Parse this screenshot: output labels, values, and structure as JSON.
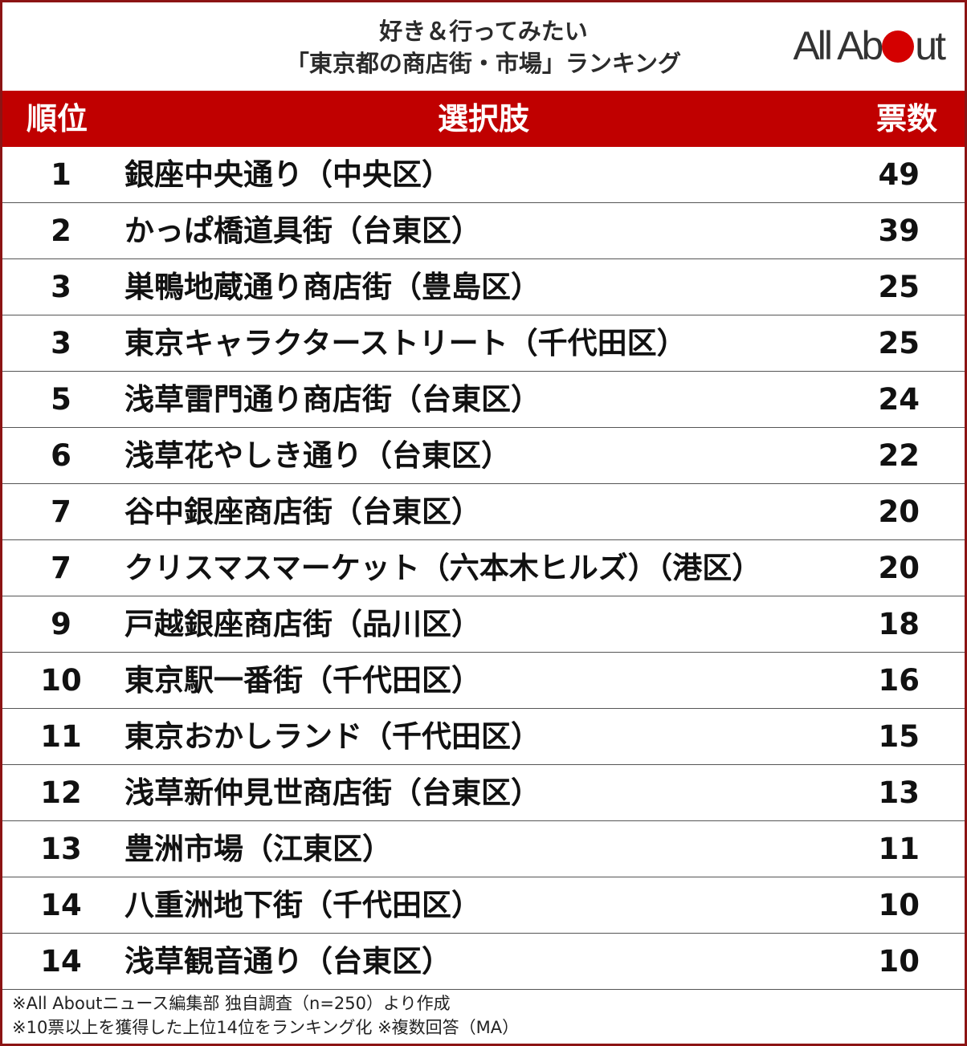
{
  "header": {
    "title_line1": "好き＆行ってみたい",
    "title_line2": "「東京都の商店街・市場」ランキング",
    "logo_part1": "All Ab",
    "logo_part2": "ut"
  },
  "table": {
    "columns": [
      "順位",
      "選択肢",
      "票数"
    ],
    "rows": [
      {
        "rank": "1",
        "choice": "銀座中央通り（中央区）",
        "votes": "49"
      },
      {
        "rank": "2",
        "choice": "かっぱ橋道具街（台東区）",
        "votes": "39"
      },
      {
        "rank": "3",
        "choice": "巣鴨地蔵通り商店街（豊島区）",
        "votes": "25"
      },
      {
        "rank": "3",
        "choice": "東京キャラクターストリート（千代田区）",
        "votes": "25"
      },
      {
        "rank": "5",
        "choice": "浅草雷門通り商店街（台東区）",
        "votes": "24"
      },
      {
        "rank": "6",
        "choice": "浅草花やしき通り（台東区）",
        "votes": "22"
      },
      {
        "rank": "7",
        "choice": "谷中銀座商店街（台東区）",
        "votes": "20"
      },
      {
        "rank": "7",
        "choice": "クリスマスマーケット（六本木ヒルズ）（港区）",
        "votes": "20"
      },
      {
        "rank": "9",
        "choice": "戸越銀座商店街（品川区）",
        "votes": "18"
      },
      {
        "rank": "10",
        "choice": "東京駅一番街（千代田区）",
        "votes": "16"
      },
      {
        "rank": "11",
        "choice": "東京おかしランド（千代田区）",
        "votes": "15"
      },
      {
        "rank": "12",
        "choice": "浅草新仲見世商店街（台東区）",
        "votes": "13"
      },
      {
        "rank": "13",
        "choice": "豊洲市場（江東区）",
        "votes": "11"
      },
      {
        "rank": "14",
        "choice": "八重洲地下街（千代田区）",
        "votes": "10"
      },
      {
        "rank": "14",
        "choice": "浅草観音通り（台東区）",
        "votes": "10"
      }
    ]
  },
  "footnotes": {
    "line1": "※All Aboutニュース編集部 独自調査（n=250）より作成",
    "line2": "※10票以上を獲得した上位14位をランキング化 ※複数回答（MA）"
  },
  "colors": {
    "header_bg": "#c00000",
    "frame": "#8c1414",
    "logo_dot": "#d40000"
  }
}
